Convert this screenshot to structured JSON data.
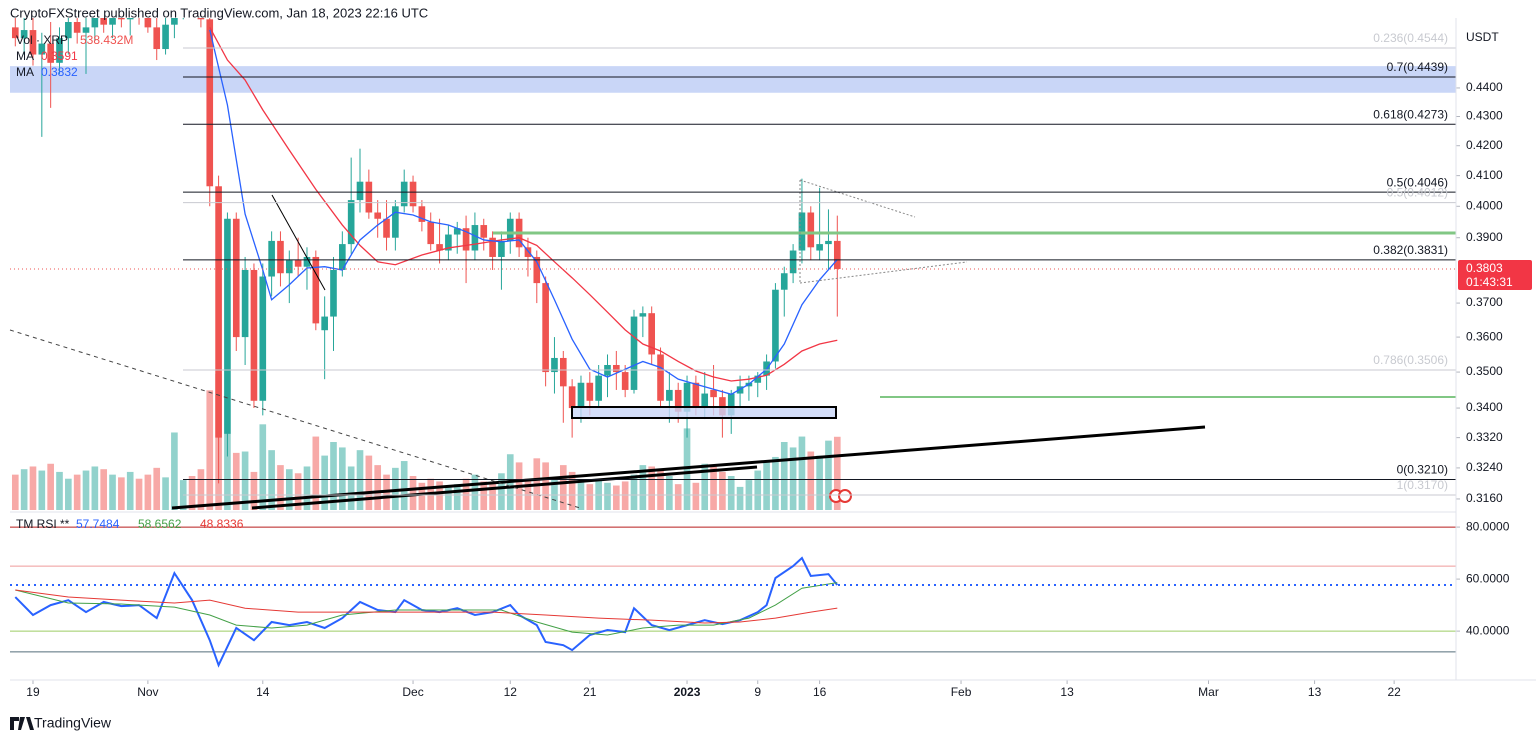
{
  "header": "CryptoFXStreet published on TradingView.com, Jan 18, 2023 22:16 UTC",
  "footer": "TradingView",
  "chart_data": [
    {
      "type": "candlestick",
      "unit": "USDT",
      "log": true,
      "xlim": [
        -2.6,
        161
      ],
      "ylim": [
        0.3132,
        0.4655
      ],
      "colors": {
        "up": "#26a69a",
        "down": "#ef5350"
      },
      "yticks": [
        {
          "value": 0.44,
          "label": "0.4400"
        },
        {
          "value": 0.43,
          "label": "0.4300"
        },
        {
          "value": 0.42,
          "label": "0.4200"
        },
        {
          "value": 0.41,
          "label": "0.4100"
        },
        {
          "value": 0.4,
          "label": "0.4000"
        },
        {
          "value": 0.39,
          "label": "0.3900"
        },
        {
          "value": 0.37,
          "label": "0.3700"
        },
        {
          "value": 0.36,
          "label": "0.3600"
        },
        {
          "value": 0.35,
          "label": "0.3500"
        },
        {
          "value": 0.34,
          "label": "0.3400"
        },
        {
          "value": 0.332,
          "label": "0.3320"
        },
        {
          "value": 0.324,
          "label": "0.3240"
        },
        {
          "value": 0.316,
          "label": "0.3160"
        }
      ],
      "xticks": [
        {
          "value": 0,
          "label": "19"
        },
        {
          "value": 13,
          "label": "Nov"
        },
        {
          "value": 26,
          "label": "14"
        },
        {
          "value": 43,
          "label": "Dec"
        },
        {
          "value": 54,
          "label": "12"
        },
        {
          "value": 63,
          "label": "21"
        },
        {
          "value": 74,
          "label": "2023"
        },
        {
          "value": 82,
          "label": "9"
        },
        {
          "value": 89,
          "label": "16"
        },
        {
          "value": 105,
          "label": "Feb"
        },
        {
          "value": 117,
          "label": "13"
        },
        {
          "value": 133,
          "label": "Mar"
        },
        {
          "value": 145,
          "label": "13"
        },
        {
          "value": 154,
          "label": "22"
        }
      ],
      "x": [
        -2,
        -1,
        0,
        1,
        2,
        3,
        4,
        5,
        6,
        7,
        8,
        9,
        10,
        11,
        12,
        13,
        14,
        15,
        16,
        17,
        18,
        19,
        20,
        21,
        22,
        23,
        24,
        25,
        26,
        27,
        28,
        29,
        30,
        31,
        32,
        33,
        34,
        35,
        36,
        37,
        38,
        39,
        40,
        41,
        42,
        43,
        44,
        45,
        46,
        47,
        48,
        49,
        50,
        51,
        52,
        53,
        54,
        55,
        56,
        57,
        58,
        59,
        60,
        61,
        62,
        63,
        64,
        65,
        66,
        67,
        68,
        69,
        70,
        71,
        72,
        73,
        74,
        75,
        76,
        77,
        78,
        79,
        80,
        81,
        82,
        83,
        84,
        85,
        86,
        87,
        88,
        89,
        90,
        91
      ],
      "open": [
        0.462,
        0.458,
        0.461,
        0.452,
        0.456,
        0.449,
        0.458,
        0.464,
        0.46,
        0.462,
        0.466,
        0.463,
        0.468,
        0.465,
        0.47,
        0.466,
        0.462,
        0.454,
        0.463,
        0.47,
        0.472,
        0.47,
        0.465,
        0.4065,
        0.333,
        0.396,
        0.36,
        0.38,
        0.342,
        0.378,
        0.389,
        0.379,
        0.383,
        0.381,
        0.384,
        0.362,
        0.366,
        0.38,
        0.388,
        0.402,
        0.408,
        0.398,
        0.396,
        0.39,
        0.4,
        0.408,
        0.4,
        0.395,
        0.388,
        0.386,
        0.391,
        0.393,
        0.386,
        0.394,
        0.39,
        0.384,
        0.389,
        0.396,
        0.387,
        0.384,
        0.376,
        0.35,
        0.354,
        0.346,
        0.34,
        0.347,
        0.342,
        0.349,
        0.352,
        0.35,
        0.345,
        0.366,
        0.367,
        0.355,
        0.342,
        0.345,
        0.339,
        0.347,
        0.34,
        0.345,
        0.343,
        0.338,
        0.344,
        0.346,
        0.347,
        0.349,
        0.353,
        0.374,
        0.379,
        0.386,
        0.398,
        0.386,
        0.388,
        0.389
      ],
      "high": [
        0.47,
        0.466,
        0.468,
        0.46,
        0.464,
        0.462,
        0.47,
        0.472,
        0.468,
        0.471,
        0.474,
        0.47,
        0.476,
        0.472,
        0.478,
        0.474,
        0.468,
        0.466,
        0.475,
        0.478,
        0.48,
        0.478,
        0.469,
        0.41,
        0.398,
        0.398,
        0.384,
        0.382,
        0.382,
        0.392,
        0.392,
        0.386,
        0.39,
        0.387,
        0.386,
        0.372,
        0.384,
        0.392,
        0.416,
        0.419,
        0.412,
        0.402,
        0.402,
        0.402,
        0.412,
        0.41,
        0.402,
        0.398,
        0.396,
        0.394,
        0.395,
        0.397,
        0.398,
        0.396,
        0.392,
        0.392,
        0.398,
        0.398,
        0.39,
        0.386,
        0.378,
        0.36,
        0.356,
        0.348,
        0.349,
        0.35,
        0.352,
        0.355,
        0.356,
        0.352,
        0.368,
        0.369,
        0.369,
        0.357,
        0.35,
        0.347,
        0.349,
        0.349,
        0.35,
        0.352,
        0.345,
        0.345,
        0.349,
        0.349,
        0.35,
        0.355,
        0.376,
        0.381,
        0.388,
        0.409,
        0.4,
        0.406,
        0.399,
        0.397
      ],
      "low": [
        0.455,
        0.452,
        0.448,
        0.423,
        0.433,
        0.445,
        0.452,
        0.456,
        0.445,
        0.457,
        0.46,
        0.458,
        0.462,
        0.459,
        0.463,
        0.46,
        0.45,
        0.452,
        0.458,
        0.465,
        0.466,
        0.462,
        0.4,
        0.32,
        0.327,
        0.356,
        0.352,
        0.34,
        0.338,
        0.372,
        0.375,
        0.37,
        0.378,
        0.374,
        0.362,
        0.348,
        0.356,
        0.378,
        0.385,
        0.398,
        0.396,
        0.39,
        0.386,
        0.386,
        0.398,
        0.398,
        0.392,
        0.386,
        0.382,
        0.383,
        0.385,
        0.376,
        0.383,
        0.386,
        0.38,
        0.374,
        0.385,
        0.384,
        0.378,
        0.37,
        0.346,
        0.344,
        0.336,
        0.332,
        0.336,
        0.338,
        0.34,
        0.343,
        0.345,
        0.343,
        0.344,
        0.36,
        0.352,
        0.34,
        0.336,
        0.336,
        0.332,
        0.338,
        0.337,
        0.338,
        0.332,
        0.333,
        0.34,
        0.342,
        0.343,
        0.345,
        0.351,
        0.366,
        0.376,
        0.382,
        0.383,
        0.383,
        0.38,
        0.366
      ],
      "close": [
        0.458,
        0.461,
        0.452,
        0.456,
        0.449,
        0.458,
        0.464,
        0.46,
        0.462,
        0.466,
        0.463,
        0.468,
        0.465,
        0.47,
        0.466,
        0.462,
        0.454,
        0.463,
        0.47,
        0.472,
        0.47,
        0.465,
        0.4065,
        0.332,
        0.396,
        0.36,
        0.38,
        0.342,
        0.378,
        0.389,
        0.379,
        0.383,
        0.381,
        0.384,
        0.364,
        0.366,
        0.38,
        0.388,
        0.402,
        0.408,
        0.398,
        0.396,
        0.39,
        0.4,
        0.408,
        0.4,
        0.395,
        0.388,
        0.386,
        0.391,
        0.393,
        0.386,
        0.394,
        0.39,
        0.384,
        0.389,
        0.396,
        0.387,
        0.384,
        0.376,
        0.35,
        0.354,
        0.346,
        0.34,
        0.347,
        0.342,
        0.349,
        0.352,
        0.35,
        0.345,
        0.366,
        0.367,
        0.355,
        0.342,
        0.345,
        0.339,
        0.347,
        0.34,
        0.344,
        0.343,
        0.338,
        0.344,
        0.346,
        0.347,
        0.349,
        0.353,
        0.374,
        0.379,
        0.386,
        0.398,
        0.387,
        0.388,
        0.389,
        0.3803
      ],
      "countdown": "01:43:31",
      "volume": {
        "name": "Vol · XRP",
        "label": "538.432M",
        "ylim": [
          0,
          2500
        ],
        "values": [
          260,
          300,
          320,
          290,
          340,
          280,
          230,
          260,
          290,
          320,
          300,
          260,
          240,
          280,
          230,
          260,
          310,
          240,
          570,
          220,
          250,
          300,
          880,
          1000,
          560,
          420,
          430,
          280,
          630,
          440,
          330,
          300,
          270,
          320,
          540,
          400,
          500,
          460,
          320,
          440,
          400,
          330,
          260,
          310,
          360,
          250,
          200,
          230,
          210,
          180,
          190,
          230,
          260,
          210,
          200,
          270,
          410,
          350,
          230,
          380,
          350,
          230,
          330,
          280,
          210,
          190,
          230,
          200,
          180,
          210,
          260,
          330,
          320,
          290,
          250,
          190,
          600,
          200,
          340,
          330,
          280,
          250,
          170,
          220,
          290,
          360,
          390,
          500,
          460,
          540,
          430,
          400,
          510,
          538.432
        ]
      },
      "series": [
        {
          "name": "MA",
          "color": "#f23645",
          "x": [
            20,
            22,
            24,
            26,
            29,
            32,
            35,
            37,
            39,
            41,
            44,
            47,
            50,
            53,
            55,
            57,
            59,
            61,
            63,
            65,
            67,
            69,
            71,
            73,
            75,
            77,
            79,
            81,
            83,
            85,
            87,
            89,
            91
          ],
          "values": [
            0.462,
            0.45,
            0.4428,
            0.4323,
            0.4185,
            0.4055,
            0.394,
            0.3876,
            0.3825,
            0.3816,
            0.3846,
            0.3868,
            0.388,
            0.3893,
            0.39,
            0.3876,
            0.3825,
            0.3776,
            0.3725,
            0.3673,
            0.3621,
            0.358,
            0.356,
            0.353,
            0.3503,
            0.3486,
            0.3475,
            0.348,
            0.3491,
            0.3522,
            0.356,
            0.358,
            0.3591
          ]
        },
        {
          "name": "MA",
          "color": "#2962ff",
          "x": [
            20,
            22,
            24,
            26,
            27,
            29,
            31,
            33,
            35,
            37,
            39,
            41,
            43,
            45,
            47,
            49,
            51,
            53,
            55,
            57,
            59,
            61,
            63,
            65,
            67,
            69,
            71,
            73,
            75,
            77,
            79,
            81,
            83,
            85,
            87,
            89,
            91
          ],
          "values": [
            0.4611,
            0.434,
            0.3975,
            0.38,
            0.371,
            0.3755,
            0.3806,
            0.381,
            0.38,
            0.3893,
            0.394,
            0.3981,
            0.3972,
            0.395,
            0.394,
            0.3919,
            0.3893,
            0.3887,
            0.3893,
            0.3825,
            0.371,
            0.3594,
            0.3508,
            0.3486,
            0.3508,
            0.353,
            0.3513,
            0.348,
            0.3466,
            0.3452,
            0.3438,
            0.3466,
            0.3508,
            0.358,
            0.3695,
            0.377,
            0.3832
          ]
        }
      ],
      "zones": [
        {
          "range": [
            0.4383,
            0.4478
          ],
          "color": "#c9d6f7"
        }
      ],
      "fib": [
        {
          "label": "0.236(0.4544)",
          "value": 0.4544,
          "faint": true
        },
        {
          "label": "0.7(0.4439)",
          "value": 0.4439
        },
        {
          "label": "0.618(0.4273)",
          "value": 0.4273
        },
        {
          "label": "0.5(0.4046)",
          "value": 0.4046
        },
        {
          "label": "0.5(0.4012)",
          "value": 0.4012,
          "faint": true
        },
        {
          "label": "0.382(0.3831)",
          "value": 0.3831
        },
        {
          "label": "0.786(0.3506)",
          "value": 0.3506,
          "faint": true
        },
        {
          "label": "0(0.3210)",
          "value": 0.321
        },
        {
          "label": "1(0.3170)",
          "value": 0.317,
          "faint": true
        }
      ]
    },
    {
      "type": "line",
      "title": "TM RSI **",
      "xlim": [
        -2.6,
        161
      ],
      "ylim": [
        21.2,
        85.8
      ],
      "yticks": [
        {
          "value": 40,
          "label": "40.0000"
        },
        {
          "value": 60,
          "label": "60.0000"
        },
        {
          "value": 80,
          "label": "80.0000"
        }
      ],
      "levels": [
        {
          "value": 80,
          "color": "#b71c1c"
        },
        {
          "value": 65,
          "color": "#ef9a9a"
        },
        {
          "value": 40,
          "color": "#9ccc65"
        },
        {
          "value": 32,
          "color": "#546e7a"
        }
      ],
      "series": [
        {
          "color": "#2962ff",
          "x": [
            -2,
            0,
            2,
            4,
            6,
            8,
            10,
            12,
            14,
            16,
            18,
            20,
            21,
            23,
            25,
            27,
            29,
            31,
            33,
            35,
            37,
            39,
            41,
            42,
            44,
            46,
            48,
            50,
            52,
            54,
            55,
            57,
            58,
            60,
            61,
            63,
            65,
            67,
            68,
            70,
            72,
            74,
            76,
            78,
            80,
            82,
            83,
            84,
            86,
            87,
            88,
            90,
            91
          ],
          "values": [
            53.1,
            46.2,
            50,
            51.9,
            47.3,
            51.2,
            49.6,
            50,
            45,
            62.3,
            51.9,
            36.5,
            26.9,
            41.2,
            36.5,
            43.5,
            42.3,
            43.5,
            41.2,
            45,
            51.2,
            48.1,
            47.3,
            51.9,
            48.1,
            47.3,
            48.8,
            46.2,
            47.3,
            50,
            46.2,
            42.3,
            35.8,
            34.6,
            32.7,
            38.5,
            40.4,
            39.6,
            48.8,
            42.3,
            40.4,
            42.3,
            44.2,
            42.7,
            44.2,
            47.3,
            50,
            60.4,
            65,
            68.1,
            61.2,
            61.9,
            57.7484
          ]
        },
        {
          "color": "#43a047",
          "x": [
            -2,
            4,
            10,
            16,
            20,
            23,
            27,
            31,
            35,
            41,
            47,
            53,
            57,
            61,
            65,
            69,
            73,
            77,
            81,
            84,
            87,
            91
          ],
          "values": [
            55.8,
            50.8,
            50.4,
            49.2,
            46.2,
            42.3,
            41.2,
            42.3,
            46.2,
            48.1,
            48.1,
            48.1,
            43.5,
            39.6,
            38.5,
            41.2,
            42.3,
            42.3,
            45,
            50,
            56.5,
            58.6562
          ]
        },
        {
          "color": "#e53935",
          "x": [
            -2,
            4,
            10,
            16,
            20,
            24,
            30,
            36,
            44,
            52,
            58,
            64,
            70,
            76,
            80,
            84,
            88,
            91
          ],
          "values": [
            55.8,
            53.1,
            51.9,
            50.8,
            51.9,
            48.8,
            47.3,
            47.3,
            47.3,
            47.3,
            46.2,
            45,
            44.2,
            43.1,
            43.5,
            45,
            47.3,
            48.8336
          ]
        }
      ]
    }
  ]
}
